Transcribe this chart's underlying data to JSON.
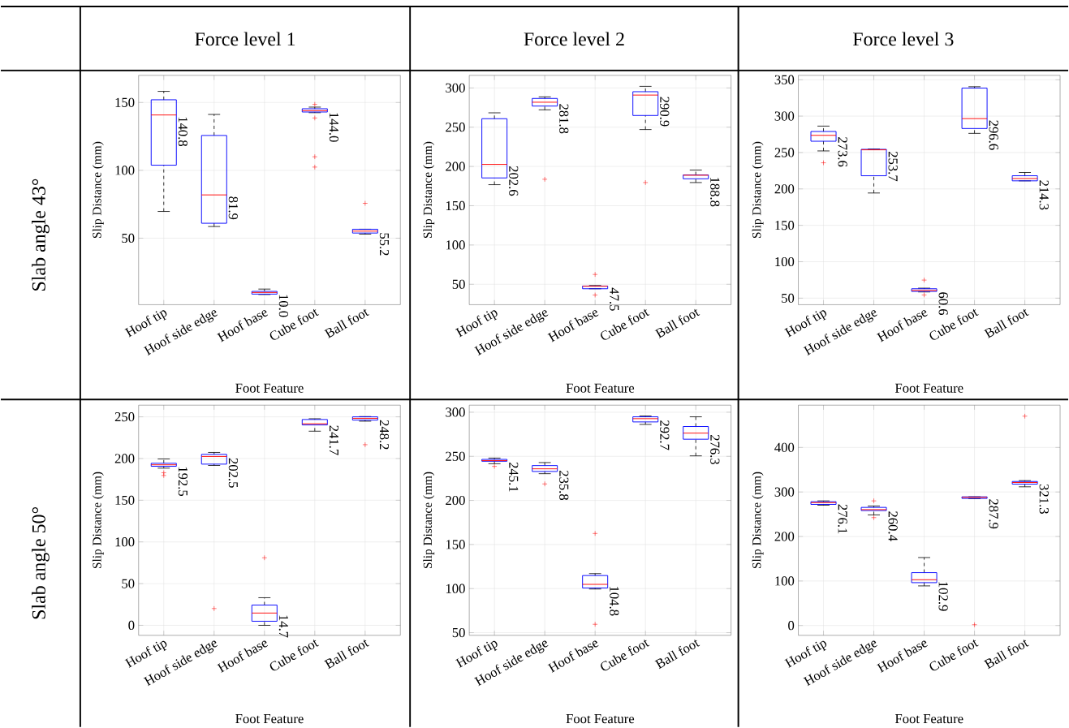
{
  "chart_data": [
    {
      "type": "box",
      "title": "Force level 1",
      "xlabel": "Foot Feature",
      "ylabel": "Slip Distance (mm)",
      "categories": [
        "Hoof tip",
        "Hoof side edge",
        "Hoof base",
        "Cube foot",
        "Ball foot"
      ],
      "ylim": [
        1,
        170
      ],
      "yticks": [
        50,
        100,
        150
      ],
      "grid": true,
      "marker": "cross",
      "color": "#0000ff",
      "annotations": [
        "Slab angle 43°",
        {
          "text": "140.8",
          "x": "Hoof tip",
          "y": 140.8
        },
        {
          "text": "81.9",
          "x": "Hoof side edge",
          "y": 81.9
        },
        {
          "text": "10.0",
          "x": "Hoof base",
          "y": 10.0
        },
        {
          "text": "144.0",
          "x": "Cube foot",
          "y": 144.0
        },
        {
          "text": "55.2",
          "x": "Ball foot",
          "y": 55.2
        }
      ],
      "boxes": [
        {
          "low": 69.7,
          "q1": 103.8,
          "median": 140.8,
          "q3": 152.0,
          "high": 158.2
        },
        {
          "low": 58.6,
          "q1": 61.0,
          "median": 81.9,
          "q3": 125.7,
          "high": 141.2
        },
        {
          "low": 8.5,
          "q1": 8.8,
          "median": 10.0,
          "q3": 10.8,
          "high": 12.5
        },
        {
          "low": 142.5,
          "q1": 143.0,
          "median": 144.0,
          "q3": 145.4,
          "high": 146.6,
          "outliers": [
            148.6,
            138.6,
            110.0,
            102.4
          ]
        },
        {
          "low": 53.0,
          "q1": 53.8,
          "median": 55.2,
          "q3": 56.6,
          "high": 56.6,
          "outliers": [
            75.7
          ]
        }
      ]
    },
    {
      "type": "box",
      "title": "Force level 2",
      "xlabel": "Foot Feature",
      "ylabel": "Slip Distance (mm)",
      "categories": [
        "Hoof tip",
        "Hoof side edge",
        "Hoof base",
        "Cube foot",
        "Ball foot"
      ],
      "ylim": [
        24,
        316
      ],
      "yticks": [
        50,
        100,
        150,
        200,
        250,
        300
      ],
      "grid": true,
      "marker": "cross",
      "color": "#0000ff",
      "annotations": [
        {
          "text": "202.6",
          "x": "Hoof tip",
          "y": 202.6
        },
        {
          "text": "281.8",
          "x": "Hoof side edge",
          "y": 281.8
        },
        {
          "text": "47.5",
          "x": "Hoof base",
          "y": 47.5
        },
        {
          "text": "290.9",
          "x": "Cube foot",
          "y": 290.9
        },
        {
          "text": "188.8",
          "x": "Ball foot",
          "y": 188.8
        }
      ],
      "boxes": [
        {
          "low": 176.8,
          "q1": 185.4,
          "median": 202.6,
          "q3": 260.8,
          "high": 268.3
        },
        {
          "low": 272.1,
          "q1": 276.9,
          "median": 281.8,
          "q3": 286.6,
          "high": 288.6,
          "outliers": [
            183.7
          ]
        },
        {
          "low": 44.3,
          "q1": 44.3,
          "median": 47.5,
          "q3": 47.7,
          "high": 48.4,
          "outliers": [
            62.5,
            36.3
          ]
        },
        {
          "low": 247.0,
          "q1": 264.9,
          "median": 290.9,
          "q3": 295.2,
          "high": 302.0,
          "outliers": [
            179.5
          ]
        },
        {
          "low": 179.5,
          "q1": 184.3,
          "median": 188.8,
          "q3": 189.2,
          "high": 195.4
        }
      ]
    },
    {
      "type": "box",
      "title": "Force level 3",
      "xlabel": "Foot Feature",
      "ylabel": "Slip Distance (mm)",
      "categories": [
        "Hoof tip",
        "Hoof side edge",
        "Hoof base",
        "Cube foot",
        "Ball foot"
      ],
      "ylim": [
        41,
        356
      ],
      "yticks": [
        50,
        100,
        150,
        200,
        250,
        300,
        350
      ],
      "grid": true,
      "marker": "cross",
      "color": "#0000ff",
      "annotations": [
        {
          "text": "273.6",
          "x": "Hoof tip",
          "y": 273.6
        },
        {
          "text": "253.7",
          "x": "Hoof side edge",
          "y": 253.7
        },
        {
          "text": "60.6",
          "x": "Hoof base",
          "y": 60.6
        },
        {
          "text": "296.6",
          "x": "Cube foot",
          "y": 296.6
        },
        {
          "text": "214.3",
          "x": "Ball foot",
          "y": 214.3
        }
      ],
      "boxes": [
        {
          "low": 252.2,
          "q1": 265.5,
          "median": 273.6,
          "q3": 278.9,
          "high": 286.3,
          "outliers": [
            235.9
          ]
        },
        {
          "low": 194.4,
          "q1": 218.1,
          "median": 253.7,
          "q3": 254.4,
          "high": 254.8
        },
        {
          "low": 58.5,
          "q1": 59.2,
          "median": 60.6,
          "q3": 62.9,
          "high": 63.7,
          "outliers": [
            74.8,
            54.4
          ]
        },
        {
          "low": 276.3,
          "q1": 283.0,
          "median": 296.6,
          "q3": 338.5,
          "high": 340.4
        },
        {
          "low": 211.1,
          "q1": 211.1,
          "median": 214.3,
          "q3": 218.1,
          "high": 222.6
        }
      ]
    },
    {
      "type": "box",
      "xlabel": "Foot Feature",
      "ylabel": "Slip Distance (mm)",
      "categories": [
        "Hoof tip",
        "Hoof side edge",
        "Hoof base",
        "Cube foot",
        "Ball foot"
      ],
      "ylim": [
        -12,
        264
      ],
      "yticks": [
        0,
        50,
        100,
        150,
        200,
        250
      ],
      "grid": true,
      "marker": "cross",
      "color": "#0000ff",
      "annotations": [
        "Slab angle 50°",
        {
          "text": "192.5",
          "x": "Hoof tip",
          "y": 192.5
        },
        {
          "text": "202.5",
          "x": "Hoof side edge",
          "y": 202.5
        },
        {
          "text": "14.7",
          "x": "Hoof base",
          "y": 14.7
        },
        {
          "text": "241.7",
          "x": "Cube foot",
          "y": 241.7
        },
        {
          "text": "248.2",
          "x": "Ball foot",
          "y": 248.2
        }
      ],
      "boxes": [
        {
          "low": 188.5,
          "q1": 190.7,
          "median": 192.5,
          "q3": 194.3,
          "high": 199.5,
          "outliers": [
            183.0,
            179.7
          ]
        },
        {
          "low": 191.7,
          "q1": 193.3,
          "median": 202.5,
          "q3": 205.0,
          "high": 207.3,
          "outliers": [
            20.1
          ]
        },
        {
          "low": 0.0,
          "q1": 4.9,
          "median": 14.7,
          "q3": 24.3,
          "high": 33.1,
          "outliers": [
            81.0
          ]
        },
        {
          "low": 232.8,
          "q1": 240.3,
          "median": 241.7,
          "q3": 246.8,
          "high": 247.7
        },
        {
          "low": 244.8,
          "q1": 246.1,
          "median": 248.2,
          "q3": 250.0,
          "high": 250.3,
          "outliers": [
            216.6
          ]
        }
      ]
    },
    {
      "type": "box",
      "xlabel": "Foot Feature",
      "ylabel": "Slip Distance (mm)",
      "categories": [
        "Hoof tip",
        "Hoof side edge",
        "Hoof base",
        "Cube foot",
        "Ball foot"
      ],
      "ylim": [
        47,
        308
      ],
      "yticks": [
        50,
        100,
        150,
        200,
        250,
        300
      ],
      "grid": true,
      "marker": "cross",
      "color": "#0000ff",
      "annotations": [
        {
          "text": "245.1",
          "x": "Hoof tip",
          "y": 245.1
        },
        {
          "text": "235.8",
          "x": "Hoof side edge",
          "y": 235.8
        },
        {
          "text": "104.8",
          "x": "Hoof base",
          "y": 104.8
        },
        {
          "text": "292.7",
          "x": "Cube foot",
          "y": 292.7
        },
        {
          "text": "276.3",
          "x": "Ball foot",
          "y": 276.3
        }
      ],
      "boxes": [
        {
          "low": 241.6,
          "q1": 244.4,
          "median": 245.1,
          "q3": 246.5,
          "high": 248.0,
          "outliers": [
            238.6
          ]
        },
        {
          "low": 230.3,
          "q1": 232.8,
          "median": 235.8,
          "q3": 239.5,
          "high": 242.9,
          "outliers": [
            218.7
          ]
        },
        {
          "low": 99.5,
          "q1": 100.7,
          "median": 104.8,
          "q3": 114.8,
          "high": 117.0,
          "outliers": [
            162.5,
            59.5
          ]
        },
        {
          "low": 286.2,
          "q1": 289.0,
          "median": 292.7,
          "q3": 294.8,
          "high": 295.7
        },
        {
          "low": 250.5,
          "q1": 269.4,
          "median": 276.3,
          "q3": 283.8,
          "high": 294.8
        }
      ]
    },
    {
      "type": "box",
      "xlabel": "Foot Feature",
      "ylabel": "Slip Distance (mm)",
      "categories": [
        "Hoof tip",
        "Hoof side edge",
        "Hoof base",
        "Cube foot",
        "Ball foot"
      ],
      "ylim": [
        -22,
        495
      ],
      "yticks": [
        0,
        100,
        200,
        300,
        400
      ],
      "grid": true,
      "marker": "cross",
      "color": "#0000ff",
      "annotations": [
        {
          "text": "276.1",
          "x": "Hoof tip",
          "y": 276.1
        },
        {
          "text": "260.4",
          "x": "Hoof side edge",
          "y": 260.4
        },
        {
          "text": "102.9",
          "x": "Hoof base",
          "y": 102.9
        },
        {
          "text": "287.9",
          "x": "Cube foot",
          "y": 287.9
        },
        {
          "text": "321.3",
          "x": "Ball foot",
          "y": 321.3
        }
      ],
      "boxes": [
        {
          "low": 270.3,
          "q1": 272.1,
          "median": 276.1,
          "q3": 278.2,
          "high": 280.0
        },
        {
          "low": 248.5,
          "q1": 258.2,
          "median": 260.4,
          "q3": 265.4,
          "high": 268.5,
          "outliers": [
            280.0,
            242.4
          ]
        },
        {
          "low": 89.0,
          "q1": 96.3,
          "median": 102.9,
          "q3": 118.8,
          "high": 152.7
        },
        {
          "low": 284.8,
          "q1": 285.5,
          "median": 287.9,
          "q3": 289.1,
          "high": 289.1,
          "outliers": [
            1.8
          ]
        },
        {
          "low": 311.6,
          "q1": 317.6,
          "median": 321.3,
          "q3": 323.6,
          "high": 325.5,
          "outliers": [
            470.3
          ]
        }
      ]
    }
  ]
}
